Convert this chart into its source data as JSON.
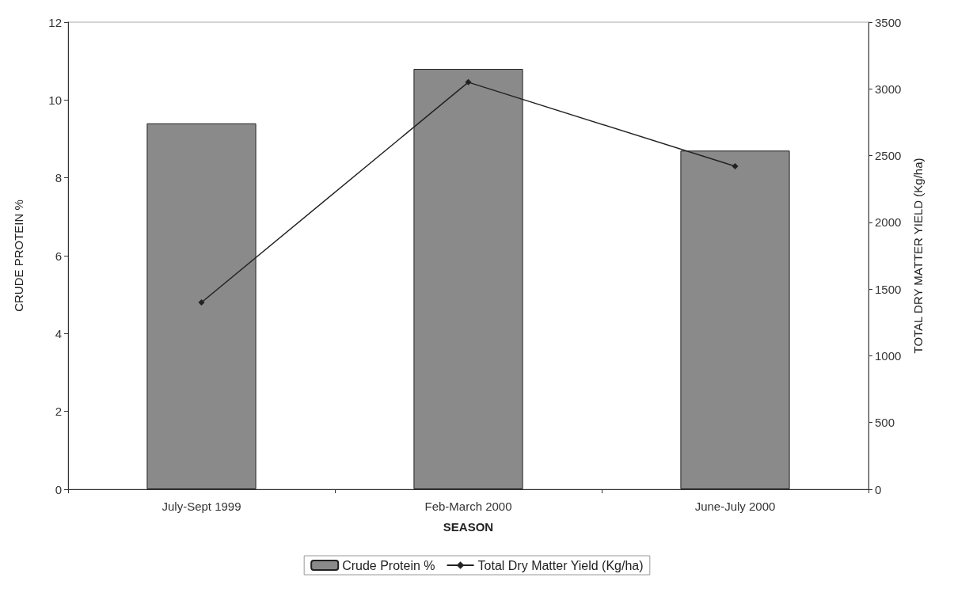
{
  "chart_data": {
    "type": "bar",
    "xlabel": "SEASON",
    "ylabel": "CRUDE PROTEIN %",
    "y2label": "TOTAL DRY MATTER YIELD (Kg/ha)",
    "categories": [
      "July-Sept 1999",
      "Feb-March 2000",
      "June-July 2000"
    ],
    "series": [
      {
        "name": "Crude Protein %",
        "color": "#8a8a8a",
        "values": [
          9.4,
          10.8,
          8.7
        ]
      },
      {
        "name": "Total Dry Matter Yield (Kg/ha)",
        "type": "line",
        "axis": "y2",
        "color": "#222222",
        "values": [
          1400,
          3050,
          2420
        ]
      }
    ],
    "ylim": [
      0,
      12
    ],
    "yticks": [
      0,
      2,
      4,
      6,
      8,
      10,
      12
    ],
    "y2lim": [
      0,
      3500
    ],
    "y2ticks": [
      0,
      500,
      1000,
      1500,
      2000,
      2500,
      3000,
      3500
    ],
    "grid": false,
    "marker": "diamond",
    "legend": "bottom"
  }
}
